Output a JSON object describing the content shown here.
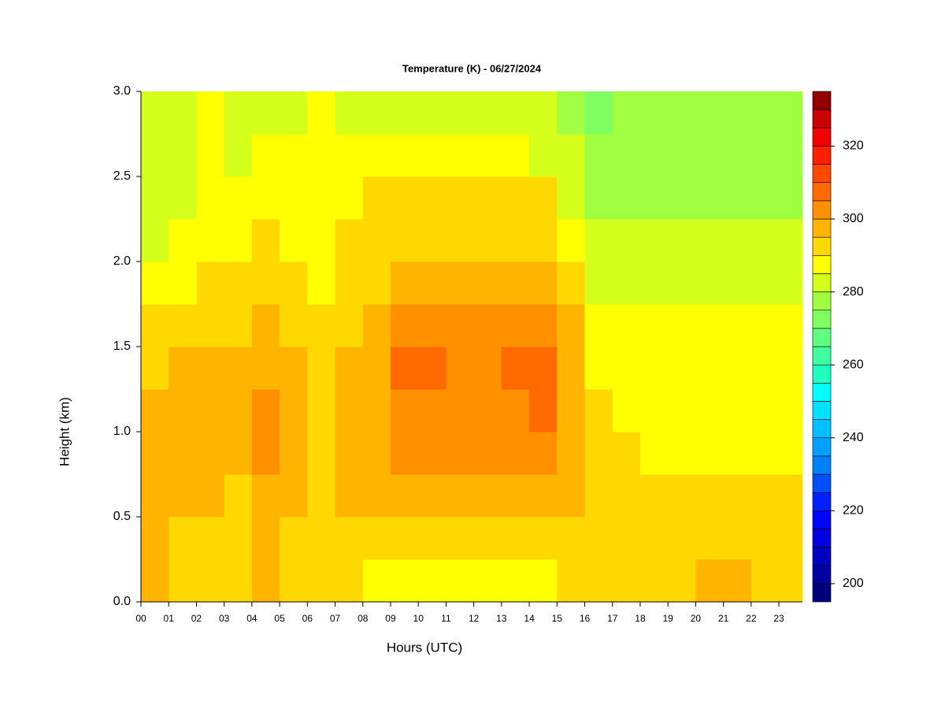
{
  "chart_data": {
    "type": "heatmap",
    "title": "Temperature (K) - 06/27/2024",
    "xlabel": "Hours (UTC)",
    "ylabel": "Height (km)",
    "xlim": [
      0,
      23.85
    ],
    "ylim": [
      0,
      3
    ],
    "xticks": [
      {
        "value": 0,
        "label": "00"
      },
      {
        "value": 1,
        "label": "01"
      },
      {
        "value": 2,
        "label": "02"
      },
      {
        "value": 3,
        "label": "03"
      },
      {
        "value": 4,
        "label": "04"
      },
      {
        "value": 5,
        "label": "05"
      },
      {
        "value": 6,
        "label": "06"
      },
      {
        "value": 7,
        "label": "07"
      },
      {
        "value": 8,
        "label": "08"
      },
      {
        "value": 9,
        "label": "09"
      },
      {
        "value": 10,
        "label": "10"
      },
      {
        "value": 11,
        "label": "11"
      },
      {
        "value": 12,
        "label": "12"
      },
      {
        "value": 13,
        "label": "13"
      },
      {
        "value": 14,
        "label": "14"
      },
      {
        "value": 15,
        "label": "15"
      },
      {
        "value": 16,
        "label": "16"
      },
      {
        "value": 17,
        "label": "17"
      },
      {
        "value": 18,
        "label": "18"
      },
      {
        "value": 19,
        "label": "19"
      },
      {
        "value": 20,
        "label": "20"
      },
      {
        "value": 21,
        "label": "21"
      },
      {
        "value": 22,
        "label": "22"
      },
      {
        "value": 23,
        "label": "23"
      }
    ],
    "yticks": [
      {
        "value": 0,
        "label": "0.0"
      },
      {
        "value": 0.5,
        "label": "0.5"
      },
      {
        "value": 1,
        "label": "1.0"
      },
      {
        "value": 1.5,
        "label": "1.5"
      },
      {
        "value": 2,
        "label": "2.0"
      },
      {
        "value": 2.5,
        "label": "2.5"
      },
      {
        "value": 3,
        "label": "3.0"
      }
    ],
    "x": [
      0.5,
      1.5,
      2.5,
      3.5,
      4.5,
      5.5,
      6.5,
      7.5,
      8.5,
      9.5,
      10.5,
      11.5,
      12.5,
      13.5,
      14.5,
      15.5,
      16.5,
      17.5,
      18.5,
      19.5,
      20.5,
      21.5,
      22.5,
      23.5
    ],
    "y": [
      0.125,
      0.375,
      0.625,
      0.875,
      1.125,
      1.375,
      1.625,
      1.875,
      2.125,
      2.375,
      2.625,
      2.875
    ],
    "z": [
      [
        297,
        292,
        292,
        292,
        297,
        292,
        292,
        292,
        288,
        288,
        288,
        288,
        288,
        288,
        288,
        292,
        292,
        292,
        292,
        292,
        297,
        297,
        292,
        292
      ],
      [
        297,
        292,
        292,
        292,
        297,
        292,
        292,
        292,
        292,
        292,
        292,
        292,
        292,
        292,
        292,
        292,
        292,
        292,
        292,
        292,
        292,
        292,
        292,
        292
      ],
      [
        297,
        297,
        297,
        292,
        297,
        297,
        292,
        297,
        297,
        297,
        297,
        297,
        297,
        297,
        297,
        297,
        292,
        292,
        292,
        292,
        292,
        292,
        292,
        292
      ],
      [
        297,
        297,
        297,
        297,
        302,
        297,
        292,
        297,
        297,
        302,
        302,
        302,
        302,
        302,
        302,
        297,
        292,
        292,
        288,
        288,
        288,
        288,
        288,
        288
      ],
      [
        297,
        297,
        297,
        297,
        302,
        297,
        292,
        297,
        297,
        302,
        302,
        302,
        302,
        302,
        307,
        297,
        292,
        288,
        288,
        288,
        288,
        288,
        288,
        288
      ],
      [
        292,
        297,
        297,
        297,
        297,
        297,
        292,
        297,
        297,
        307,
        307,
        302,
        302,
        307,
        307,
        297,
        288,
        288,
        288,
        288,
        288,
        288,
        288,
        288
      ],
      [
        292,
        292,
        292,
        292,
        297,
        292,
        292,
        292,
        297,
        302,
        302,
        302,
        302,
        302,
        302,
        297,
        288,
        288,
        288,
        288,
        288,
        288,
        288,
        288
      ],
      [
        288,
        288,
        292,
        292,
        292,
        292,
        288,
        292,
        292,
        297,
        297,
        297,
        297,
        297,
        297,
        292,
        283,
        283,
        283,
        283,
        283,
        283,
        283,
        283
      ],
      [
        283,
        288,
        288,
        288,
        292,
        288,
        288,
        292,
        292,
        292,
        292,
        292,
        292,
        292,
        292,
        288,
        283,
        283,
        283,
        283,
        283,
        283,
        283,
        283
      ],
      [
        283,
        283,
        288,
        288,
        288,
        288,
        288,
        288,
        292,
        292,
        292,
        292,
        292,
        292,
        292,
        283,
        278,
        278,
        278,
        278,
        278,
        278,
        278,
        278
      ],
      [
        283,
        283,
        288,
        283,
        288,
        288,
        288,
        288,
        288,
        288,
        288,
        288,
        288,
        288,
        283,
        283,
        278,
        278,
        278,
        278,
        278,
        278,
        278,
        278
      ],
      [
        283,
        283,
        288,
        283,
        283,
        283,
        288,
        283,
        283,
        283,
        283,
        283,
        283,
        283,
        283,
        278,
        273,
        278,
        278,
        278,
        278,
        278,
        278,
        278
      ]
    ],
    "levels": [
      195,
      200,
      205,
      210,
      215,
      220,
      225,
      230,
      235,
      240,
      245,
      250,
      255,
      260,
      265,
      270,
      275,
      280,
      285,
      290,
      295,
      300,
      305,
      310,
      315,
      320,
      325,
      330,
      335
    ],
    "colors": [
      "#00007f",
      "#0000a0",
      "#0000c0",
      "#0000e0",
      "#0000ff",
      "#0020ff",
      "#0050ff",
      "#0080ff",
      "#00a0ff",
      "#00c0ff",
      "#00e0ff",
      "#00ffff",
      "#20ffc0",
      "#40ffa0",
      "#60ff80",
      "#80ff60",
      "#a0ff40",
      "#d4ff1a",
      "#ffff00",
      "#ffd800",
      "#ffb400",
      "#ff9000",
      "#ff6a00",
      "#ff4800",
      "#ff2000",
      "#f00000",
      "#c80000",
      "#900000"
    ],
    "zticks": [
      200,
      220,
      240,
      260,
      280,
      300,
      320
    ]
  }
}
